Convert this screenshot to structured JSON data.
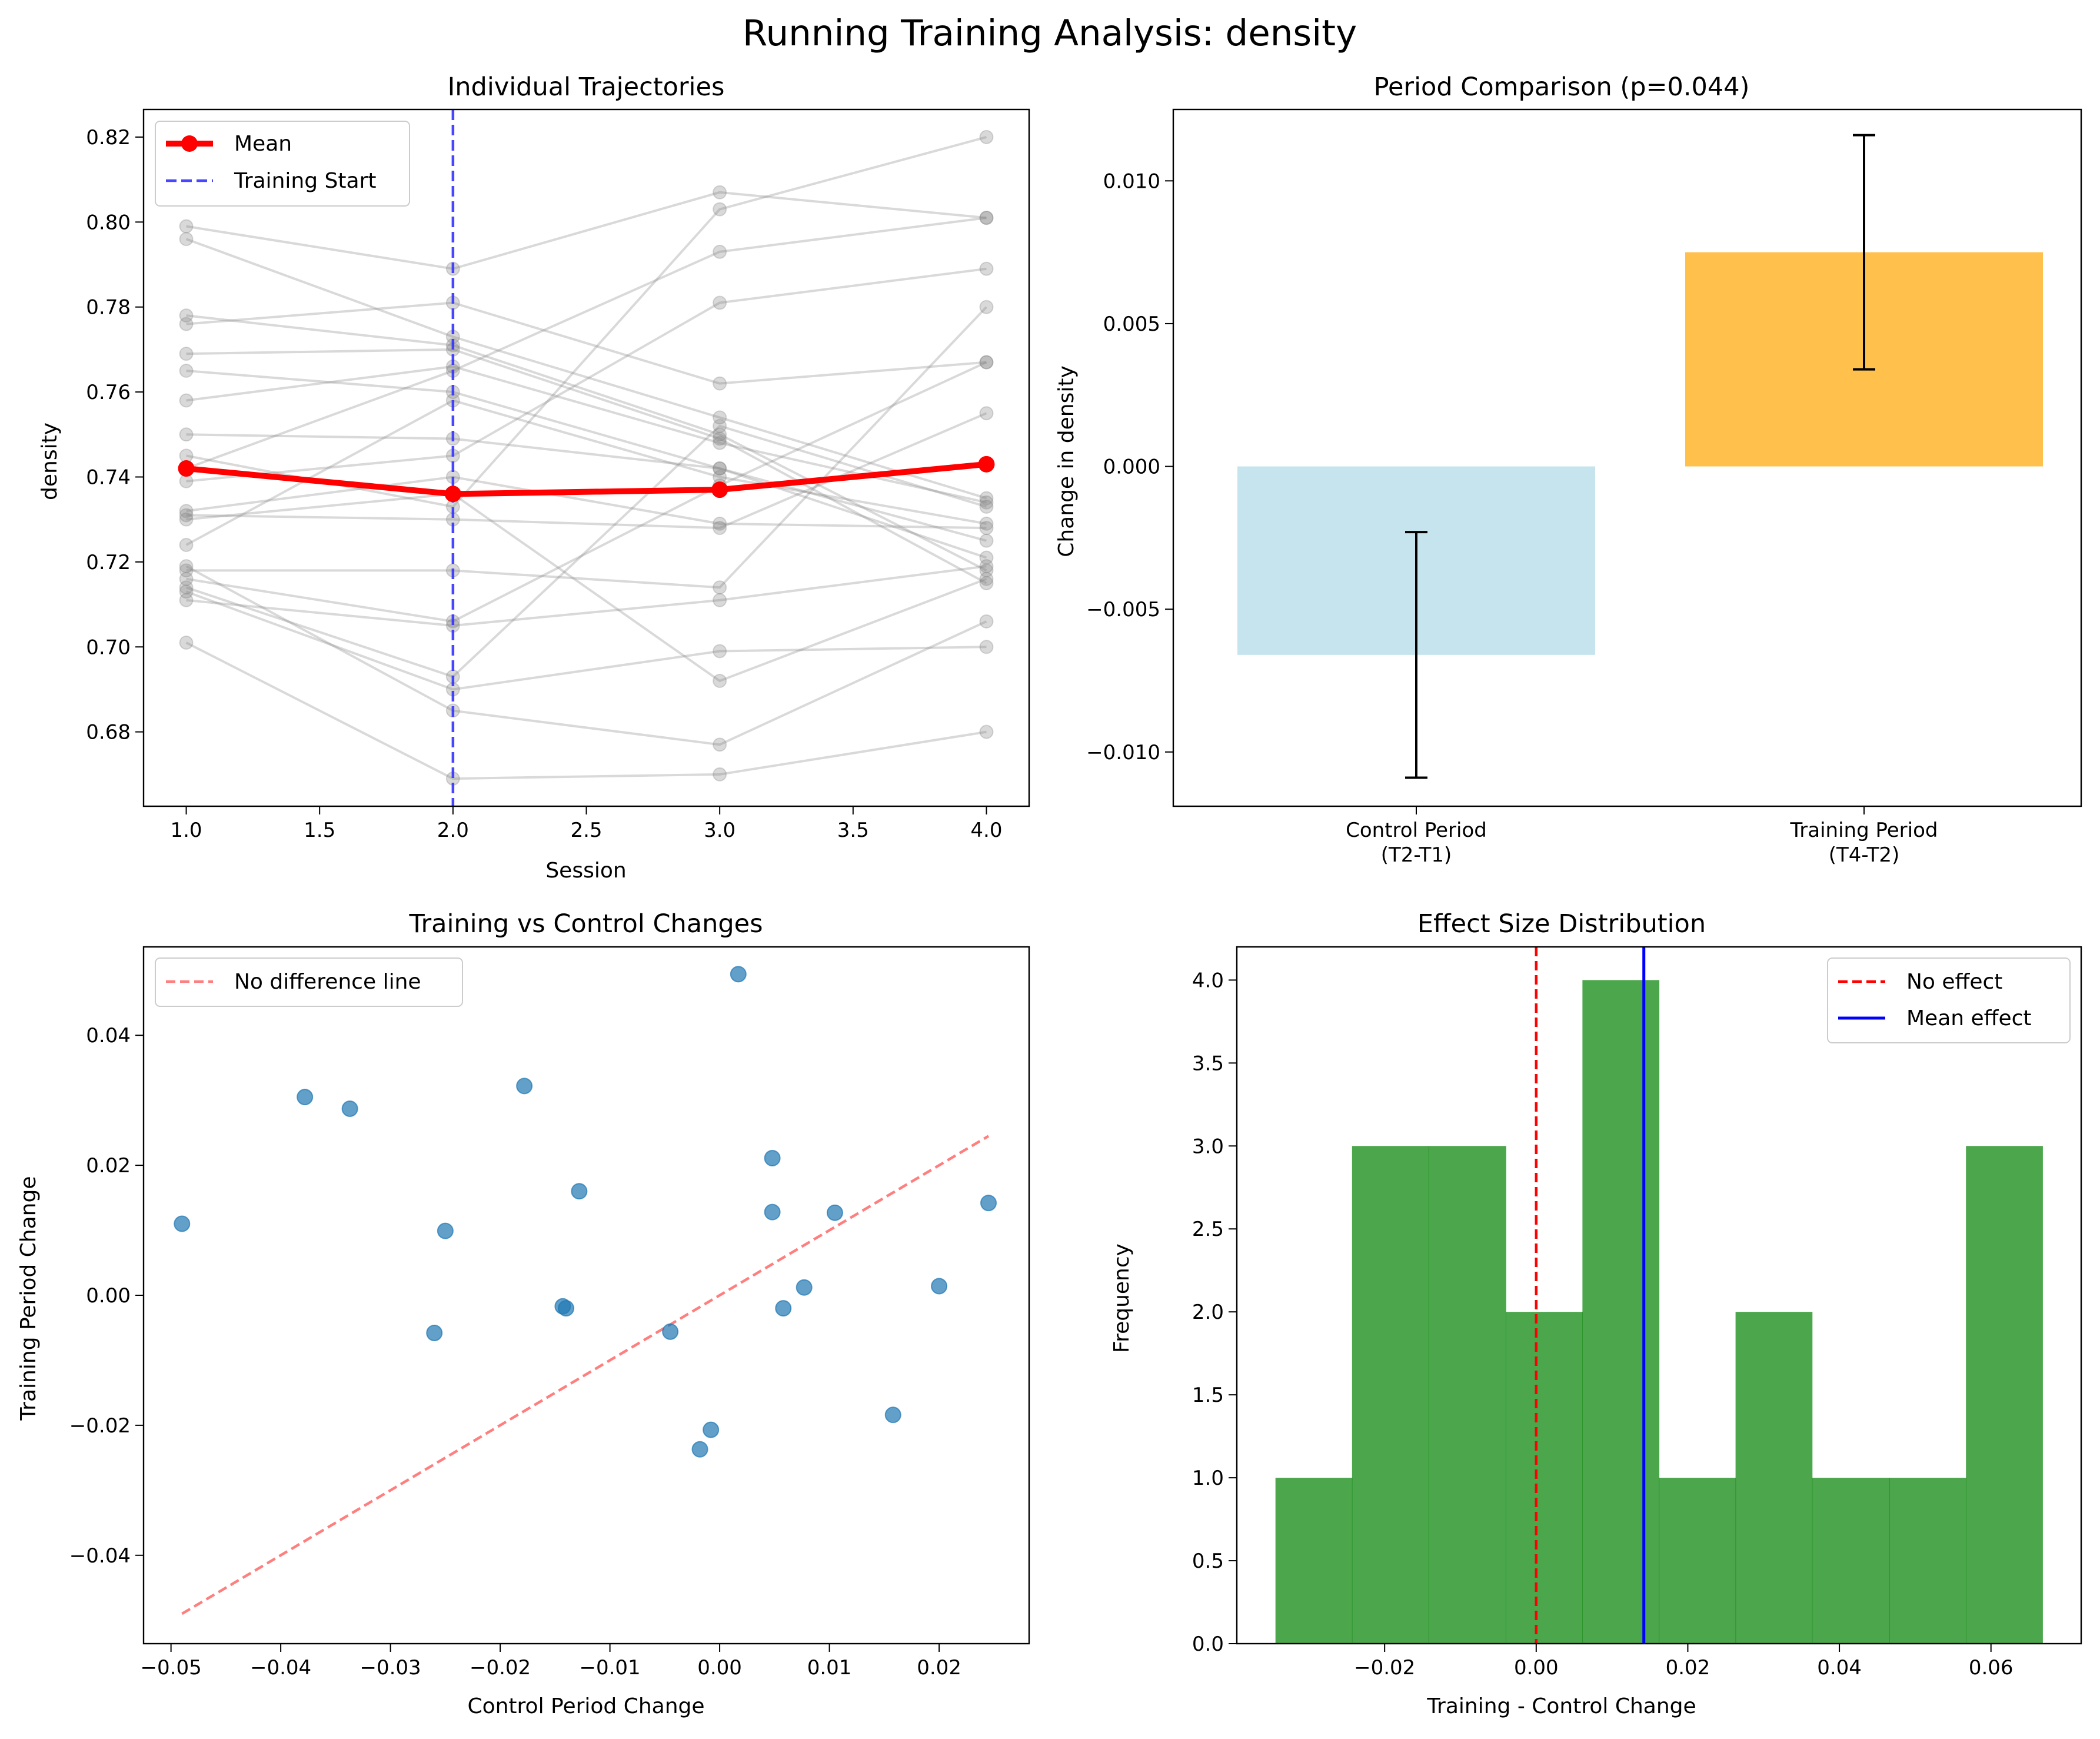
{
  "figure": {
    "suptitle": "Running Training Analysis: density"
  },
  "chart_data": [
    {
      "type": "line",
      "title": "Individual Trajectories",
      "xlabel": "Session",
      "ylabel": "density",
      "xlim": [
        0.84,
        4.16
      ],
      "ylim": [
        0.6625,
        0.8265
      ],
      "xticks": [
        1.0,
        1.5,
        2.0,
        2.5,
        3.0,
        3.5,
        4.0
      ],
      "xtick_labels": [
        "1.0",
        "1.5",
        "2.0",
        "2.5",
        "3.0",
        "3.5",
        "4.0"
      ],
      "yticks": [
        0.68,
        0.7,
        0.72,
        0.74,
        0.76,
        0.78,
        0.8,
        0.82
      ],
      "ytick_labels": [
        "0.68",
        "0.70",
        "0.72",
        "0.74",
        "0.76",
        "0.78",
        "0.80",
        "0.82"
      ],
      "x": [
        1,
        2,
        3,
        4
      ],
      "individuals": [
        [
          0.799,
          0.789,
          0.807,
          0.801
        ],
        [
          0.796,
          0.773,
          0.754,
          0.735
        ],
        [
          0.778,
          0.771,
          0.75,
          0.718
        ],
        [
          0.776,
          0.781,
          0.762,
          0.767
        ],
        [
          0.769,
          0.77,
          0.749,
          0.715
        ],
        [
          0.765,
          0.76,
          0.742,
          0.721
        ],
        [
          0.758,
          0.766,
          0.748,
          0.734
        ],
        [
          0.75,
          0.749,
          0.742,
          0.725
        ],
        [
          0.745,
          0.733,
          0.803,
          0.82
        ],
        [
          0.742,
          0.765,
          0.793,
          0.801
        ],
        [
          0.739,
          0.745,
          0.781,
          0.789
        ],
        [
          0.732,
          0.74,
          0.729,
          0.728
        ],
        [
          0.731,
          0.73,
          0.728,
          0.755
        ],
        [
          0.724,
          0.758,
          0.74,
          0.729
        ],
        [
          0.718,
          0.718,
          0.714,
          0.78
        ],
        [
          0.716,
          0.706,
          0.738,
          0.767
        ],
        [
          0.714,
          0.693,
          0.752,
          0.733
        ],
        [
          0.711,
          0.705,
          0.711,
          0.719
        ],
        [
          0.713,
          0.69,
          0.699,
          0.7
        ],
        [
          0.719,
          0.685,
          0.677,
          0.706
        ],
        [
          0.701,
          0.669,
          0.67,
          0.68
        ],
        [
          0.73,
          0.736,
          0.692,
          0.716
        ]
      ],
      "mean": {
        "name": "Mean",
        "values": [
          0.742,
          0.736,
          0.737,
          0.743
        ],
        "color": "#ff0000"
      },
      "vline": {
        "name": "Training Start",
        "x": 2.0,
        "color": "#3333ff"
      },
      "individual_color": "#808080",
      "legend": {
        "loc": "upper-left",
        "entries": [
          "Mean",
          "Training Start"
        ]
      },
      "grid": false
    },
    {
      "type": "bar",
      "title": "Period Comparison (p=0.044)",
      "xlabel": "",
      "ylabel": "Change in density",
      "categories": [
        [
          "Control Period",
          "(T2-T1)"
        ],
        [
          "Training Period",
          "(T4-T2)"
        ]
      ],
      "values": [
        -0.0066,
        0.0075
      ],
      "errors": [
        0.0043,
        0.0041
      ],
      "colors": [
        "#add8e6",
        "#ffa500"
      ],
      "bar_alpha": 0.7,
      "ylim": [
        -0.0119,
        0.0125
      ],
      "yticks": [
        -0.01,
        -0.005,
        0.0,
        0.005,
        0.01
      ],
      "ytick_labels": [
        "−0.010",
        "−0.005",
        "0.000",
        "0.005",
        "0.010"
      ],
      "grid": false
    },
    {
      "type": "scatter",
      "title": "Training vs Control Changes",
      "xlabel": "Control Period Change",
      "ylabel": "Training Period Change",
      "xlim": [
        -0.0525,
        0.0282
      ],
      "ylim": [
        -0.0536,
        0.0536
      ],
      "xticks": [
        -0.05,
        -0.04,
        -0.03,
        -0.02,
        -0.01,
        0.0,
        0.01,
        0.02
      ],
      "xtick_labels": [
        "−0.05",
        "−0.04",
        "−0.03",
        "−0.02",
        "−0.01",
        "0.00",
        "0.01",
        "0.02"
      ],
      "yticks": [
        -0.04,
        -0.02,
        0.0,
        0.02,
        0.04
      ],
      "ytick_labels": [
        "−0.04",
        "−0.02",
        "0.00",
        "0.02",
        "0.04"
      ],
      "points": [
        [
          -0.049,
          0.011
        ],
        [
          -0.0378,
          0.0305
        ],
        [
          -0.0337,
          0.0287
        ],
        [
          -0.026,
          -0.0058
        ],
        [
          -0.025,
          0.0099
        ],
        [
          -0.0178,
          0.0322
        ],
        [
          -0.0143,
          -0.0017
        ],
        [
          -0.014,
          -0.002
        ],
        [
          -0.0128,
          0.016
        ],
        [
          -0.0045,
          -0.0056
        ],
        [
          -0.0018,
          -0.0237
        ],
        [
          -0.0008,
          -0.0207
        ],
        [
          0.0017,
          0.0494
        ],
        [
          0.0048,
          0.0211
        ],
        [
          0.0048,
          0.0128
        ],
        [
          0.0058,
          -0.002
        ],
        [
          0.0077,
          0.0012
        ],
        [
          0.0105,
          0.0127
        ],
        [
          0.0158,
          -0.0184
        ],
        [
          0.02,
          0.0014
        ],
        [
          0.0245,
          0.0142
        ]
      ],
      "point_color": "#1f77b4",
      "reference_line": {
        "name": "No difference line",
        "from": [
          -0.049,
          -0.049
        ],
        "to": [
          0.0245,
          0.0245
        ],
        "color": "#ff0000"
      },
      "legend": {
        "loc": "upper-left",
        "entries": [
          "No difference line"
        ]
      },
      "grid": false
    },
    {
      "type": "bar",
      "subtype": "histogram",
      "title": "Effect Size Distribution",
      "xlabel": "Training - Control Change",
      "ylabel": "Frequency",
      "bin_edges": [
        -0.0344,
        -0.0243,
        -0.0142,
        -0.004,
        0.0061,
        0.0162,
        0.0263,
        0.0364,
        0.0466,
        0.0567,
        0.0668
      ],
      "counts": [
        1,
        3,
        3,
        2,
        4,
        1,
        2,
        1,
        1,
        3
      ],
      "bar_color": "#008000",
      "bar_alpha": 0.7,
      "xlim": [
        -0.0395,
        0.0719
      ],
      "ylim": [
        0,
        4.2
      ],
      "xticks": [
        -0.02,
        0.0,
        0.02,
        0.04,
        0.06
      ],
      "xtick_labels": [
        "−0.02",
        "0.00",
        "0.02",
        "0.04",
        "0.06"
      ],
      "yticks": [
        0.0,
        0.5,
        1.0,
        1.5,
        2.0,
        2.5,
        3.0,
        3.5,
        4.0
      ],
      "ytick_labels": [
        "0.0",
        "0.5",
        "1.0",
        "1.5",
        "2.0",
        "2.5",
        "3.0",
        "3.5",
        "4.0"
      ],
      "vlines": [
        {
          "name": "No effect",
          "x": 0.0,
          "color": "#ff0000",
          "style": "dashed"
        },
        {
          "name": "Mean effect",
          "x": 0.0142,
          "color": "#0000ff",
          "style": "solid"
        }
      ],
      "legend": {
        "loc": "upper-right",
        "entries": [
          "No effect",
          "Mean effect"
        ]
      },
      "grid": false
    }
  ]
}
